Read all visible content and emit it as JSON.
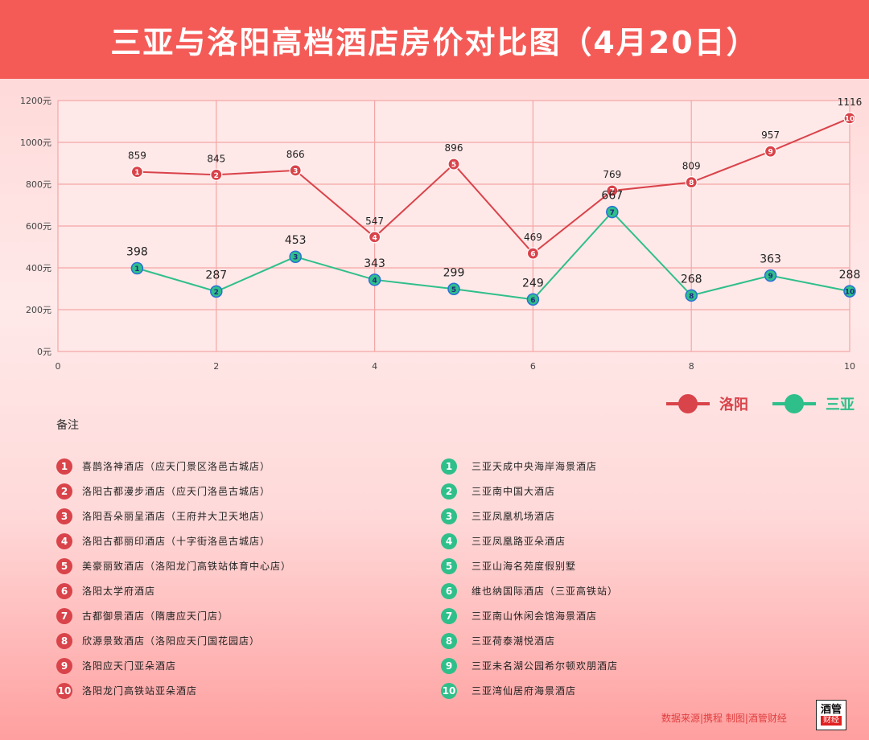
{
  "title": "三亚与洛阳高档酒店房价对比图（4月20日）",
  "chart_data": {
    "type": "line",
    "x": [
      1,
      2,
      3,
      4,
      5,
      6,
      7,
      8,
      9,
      10
    ],
    "xlim": [
      0,
      10
    ],
    "xticks": [
      "0",
      "2",
      "4",
      "6",
      "8",
      "10"
    ],
    "ylim": [
      0,
      1200
    ],
    "yticks": [
      "0元",
      "200元",
      "400元",
      "600元",
      "800元",
      "1000元",
      "1200元"
    ],
    "grid": true,
    "series": [
      {
        "name": "洛阳",
        "color": "#d9434a",
        "values": [
          859,
          845,
          866,
          547,
          896,
          469,
          769,
          809,
          957,
          1116
        ]
      },
      {
        "name": "三亚",
        "color": "#2fbf8a",
        "values": [
          398,
          287,
          453,
          343,
          299,
          249,
          667,
          268,
          363,
          288
        ]
      }
    ]
  },
  "legend": {
    "luoyang": "洛阳",
    "sanya": "三亚"
  },
  "notes_title": "备注",
  "luoyang_hotels": [
    {
      "num": "1",
      "name": "喜鹊洛神酒店（应天门景区洛邑古城店）"
    },
    {
      "num": "2",
      "name": "洛阳古都漫步酒店（应天门洛邑古城店）"
    },
    {
      "num": "3",
      "name": "洛阳吾朵丽呈酒店（王府井大卫天地店）"
    },
    {
      "num": "4",
      "name": "洛阳古都丽印酒店（十字街洛邑古城店）"
    },
    {
      "num": "5",
      "name": "美豪丽致酒店（洛阳龙门高铁站体育中心店）"
    },
    {
      "num": "6",
      "name": "洛阳太学府酒店"
    },
    {
      "num": "7",
      "name": "古都御景酒店（隋唐应天门店）"
    },
    {
      "num": "8",
      "name": "欣源景致酒店（洛阳应天门国花园店）"
    },
    {
      "num": "9",
      "name": "洛阳应天门亚朵酒店"
    },
    {
      "num": "10",
      "name": "洛阳龙门高铁站亚朵酒店"
    }
  ],
  "sanya_hotels": [
    {
      "num": "1",
      "name": "三亚天成中央海岸海景酒店"
    },
    {
      "num": "2",
      "name": "三亚南中国大酒店"
    },
    {
      "num": "3",
      "name": "三亚凤凰机场酒店"
    },
    {
      "num": "4",
      "name": "三亚凤凰路亚朵酒店"
    },
    {
      "num": "5",
      "name": "三亚山海名苑度假别墅"
    },
    {
      "num": "6",
      "name": "维也纳国际酒店（三亚高铁站）"
    },
    {
      "num": "7",
      "name": "三亚南山休闲会馆海景酒店"
    },
    {
      "num": "8",
      "name": "三亚荷泰潮悦酒店"
    },
    {
      "num": "9",
      "name": "三亚未名湖公园希尔顿欢朋酒店"
    },
    {
      "num": "10",
      "name": "三亚湾仙居府海景酒店"
    }
  ],
  "source": "数据来源|携程  制图|酒管财经",
  "logo": {
    "top": "酒管",
    "bottom": "财经"
  }
}
